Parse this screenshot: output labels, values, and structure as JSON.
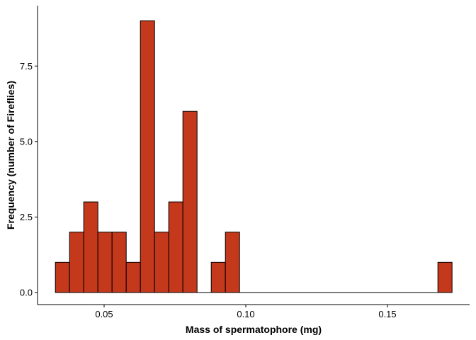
{
  "chart_data": {
    "type": "bar",
    "title": "",
    "xlabel": "Mass of spermatophore (mg)",
    "ylabel": "Frequency (number of Fireflies)",
    "xlim": [
      0.0265,
      0.179
    ],
    "ylim": [
      -0.4,
      9.5
    ],
    "grid": false,
    "legend": "none",
    "x_ticks": [
      {
        "value": 0.05,
        "label": "0.05"
      },
      {
        "value": 0.1,
        "label": "0.10"
      },
      {
        "value": 0.15,
        "label": "0.15"
      }
    ],
    "y_ticks": [
      {
        "value": 0.0,
        "label": "0.0"
      },
      {
        "value": 2.5,
        "label": "2.5"
      },
      {
        "value": 5.0,
        "label": "5.0"
      },
      {
        "value": 7.5,
        "label": "7.5"
      }
    ],
    "bar_fill": "#c4381c",
    "bar_stroke": "#000000",
    "bins": [
      {
        "x0": 0.0328,
        "x1": 0.0378,
        "count": 1
      },
      {
        "x0": 0.0378,
        "x1": 0.0428,
        "count": 2
      },
      {
        "x0": 0.0428,
        "x1": 0.0478,
        "count": 3
      },
      {
        "x0": 0.0478,
        "x1": 0.0528,
        "count": 2
      },
      {
        "x0": 0.0528,
        "x1": 0.0578,
        "count": 2
      },
      {
        "x0": 0.0578,
        "x1": 0.0628,
        "count": 1
      },
      {
        "x0": 0.0628,
        "x1": 0.0678,
        "count": 9
      },
      {
        "x0": 0.0678,
        "x1": 0.0728,
        "count": 2
      },
      {
        "x0": 0.0728,
        "x1": 0.0778,
        "count": 3
      },
      {
        "x0": 0.0778,
        "x1": 0.0828,
        "count": 6
      },
      {
        "x0": 0.0828,
        "x1": 0.0878,
        "count": 0
      },
      {
        "x0": 0.0878,
        "x1": 0.0928,
        "count": 1
      },
      {
        "x0": 0.0928,
        "x1": 0.0978,
        "count": 2
      },
      {
        "x0": 0.0978,
        "x1": 0.1028,
        "count": 0
      },
      {
        "x0": 0.1028,
        "x1": 0.1078,
        "count": 0
      },
      {
        "x0": 0.1078,
        "x1": 0.1128,
        "count": 0
      },
      {
        "x0": 0.1128,
        "x1": 0.1178,
        "count": 0
      },
      {
        "x0": 0.1178,
        "x1": 0.1228,
        "count": 0
      },
      {
        "x0": 0.1228,
        "x1": 0.1278,
        "count": 0
      },
      {
        "x0": 0.1278,
        "x1": 0.1328,
        "count": 0
      },
      {
        "x0": 0.1328,
        "x1": 0.1378,
        "count": 0
      },
      {
        "x0": 0.1378,
        "x1": 0.1428,
        "count": 0
      },
      {
        "x0": 0.1428,
        "x1": 0.1478,
        "count": 0
      },
      {
        "x0": 0.1478,
        "x1": 0.1528,
        "count": 0
      },
      {
        "x0": 0.1528,
        "x1": 0.1578,
        "count": 0
      },
      {
        "x0": 0.1578,
        "x1": 0.1628,
        "count": 0
      },
      {
        "x0": 0.1628,
        "x1": 0.1678,
        "count": 0
      },
      {
        "x0": 0.1678,
        "x1": 0.1728,
        "count": 1
      }
    ]
  }
}
